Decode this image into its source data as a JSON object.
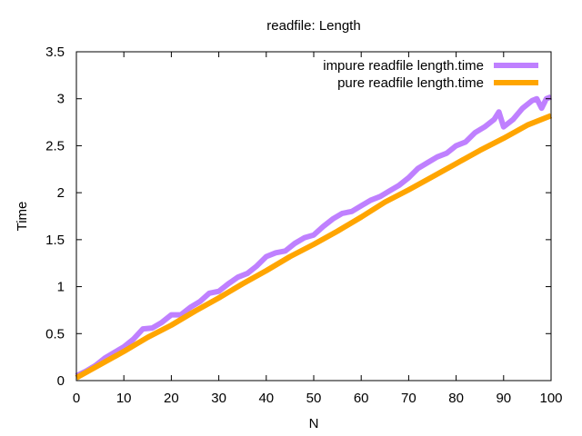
{
  "chart_data": {
    "type": "line",
    "title": "readfile: Length",
    "xlabel": "N",
    "ylabel": "Time",
    "xlim": [
      0,
      100
    ],
    "ylim": [
      0,
      3.5
    ],
    "xticks": [
      0,
      10,
      20,
      30,
      40,
      50,
      60,
      70,
      80,
      90,
      100
    ],
    "xtick_labels": [
      "0",
      "10",
      "20",
      "30",
      "40",
      "50",
      "60",
      "70",
      "80",
      "90",
      "100"
    ],
    "yticks": [
      0,
      0.5,
      1,
      1.5,
      2,
      2.5,
      3,
      3.5
    ],
    "ytick_labels": [
      "0",
      "0.5",
      "1",
      "1.5",
      "2",
      "2.5",
      "3",
      "3.5"
    ],
    "grid": false,
    "legend_position": "top-right",
    "series": [
      {
        "name": "impure readfile length.time",
        "color": "#bf80ff",
        "x": [
          0,
          2,
          4,
          6,
          8,
          10,
          12,
          14,
          16,
          18,
          20,
          22,
          24,
          26,
          28,
          30,
          32,
          34,
          36,
          38,
          40,
          42,
          44,
          46,
          48,
          50,
          52,
          54,
          56,
          58,
          60,
          62,
          64,
          66,
          68,
          70,
          72,
          74,
          76,
          78,
          80,
          82,
          84,
          86,
          88,
          89,
          90,
          92,
          94,
          96,
          97,
          98,
          99,
          100
        ],
        "y": [
          0.05,
          0.1,
          0.16,
          0.24,
          0.3,
          0.36,
          0.44,
          0.55,
          0.56,
          0.62,
          0.7,
          0.7,
          0.78,
          0.84,
          0.93,
          0.95,
          1.03,
          1.1,
          1.14,
          1.22,
          1.32,
          1.36,
          1.38,
          1.46,
          1.52,
          1.55,
          1.64,
          1.72,
          1.78,
          1.8,
          1.86,
          1.92,
          1.96,
          2.02,
          2.08,
          2.16,
          2.26,
          2.32,
          2.38,
          2.42,
          2.5,
          2.54,
          2.64,
          2.7,
          2.78,
          2.86,
          2.7,
          2.78,
          2.9,
          2.98,
          3.0,
          2.9,
          3.0,
          3.02
        ]
      },
      {
        "name": "pure readfile length.time",
        "color": "#ffa500",
        "x": [
          0,
          5,
          10,
          15,
          20,
          25,
          30,
          35,
          40,
          45,
          50,
          55,
          60,
          65,
          70,
          75,
          80,
          85,
          90,
          95,
          100
        ],
        "y": [
          0.03,
          0.17,
          0.31,
          0.46,
          0.59,
          0.74,
          0.88,
          1.03,
          1.17,
          1.32,
          1.45,
          1.59,
          1.74,
          1.9,
          2.03,
          2.17,
          2.31,
          2.45,
          2.58,
          2.72,
          2.82
        ]
      }
    ]
  }
}
